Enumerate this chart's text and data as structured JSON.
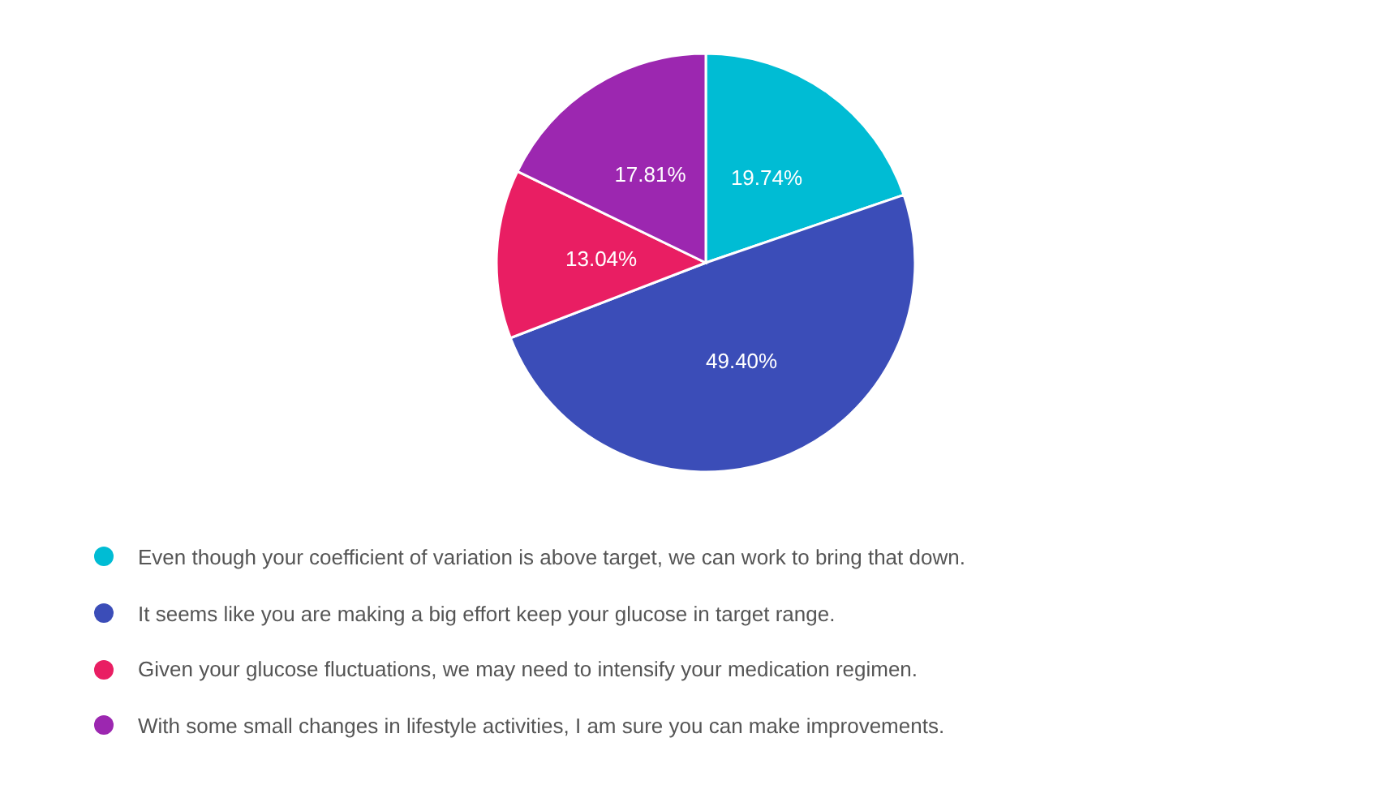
{
  "chart_data": {
    "type": "pie",
    "categories": [
      "Even though your coefficient of variation is above target, we can work to bring that down.",
      "It seems like you are making a big effort keep your glucose in target range.",
      "Given your glucose fluctuations, we may need to intensify your medication regimen.",
      "With some small changes in lifestyle activities, I am sure you can make improvements."
    ],
    "values": [
      19.74,
      49.4,
      13.04,
      17.81
    ],
    "colors": [
      "#00bcd4",
      "#3b4db8",
      "#e91e63",
      "#9c27b0"
    ],
    "value_labels": [
      "19.74%",
      "49.40%",
      "13.04%",
      "17.81%"
    ],
    "legend": "bottom"
  }
}
